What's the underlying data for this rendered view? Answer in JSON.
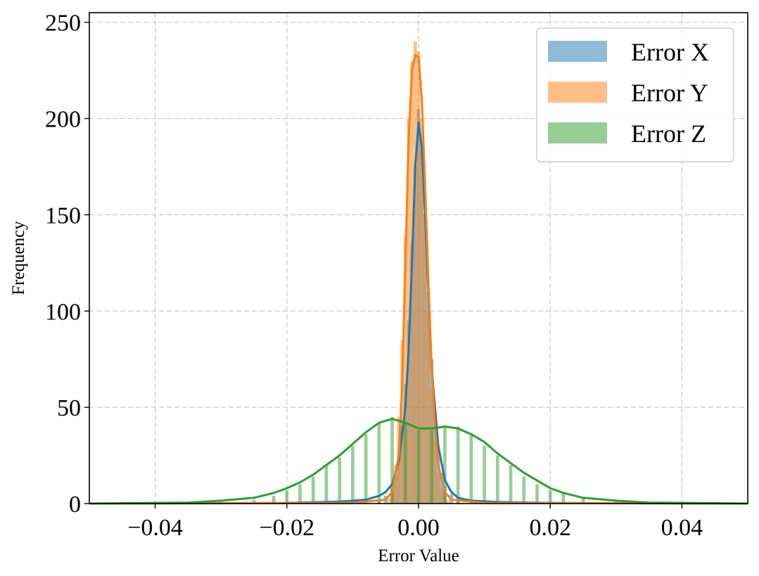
{
  "chart_data": {
    "type": "bar",
    "title": "",
    "xlabel": "Error Value",
    "ylabel": "Frequency",
    "xlim": [
      -0.05,
      0.05
    ],
    "ylim": [
      0,
      255
    ],
    "xticks": [
      -0.04,
      -0.02,
      0.0,
      0.02,
      0.04
    ],
    "xtick_labels": [
      "−0.04",
      "−0.02",
      "0.00",
      "0.02",
      "0.04"
    ],
    "yticks": [
      0,
      50,
      100,
      150,
      200,
      250
    ],
    "ytick_labels": [
      "0",
      "50",
      "100",
      "150",
      "200",
      "250"
    ],
    "grid": true,
    "legend_position": "top-right",
    "bin_width": 0.0005,
    "series": [
      {
        "name": "Error X",
        "color": "#1f77b4",
        "alpha": 0.5,
        "x": [
          -0.006,
          -0.005,
          -0.004,
          -0.0035,
          -0.003,
          -0.0025,
          -0.002,
          -0.0015,
          -0.001,
          -0.0005,
          0.0,
          0.0005,
          0.001,
          0.0015,
          0.002,
          0.0025,
          0.003,
          0.0035,
          0.004,
          0.005,
          0.006
        ],
        "values": [
          2,
          4,
          8,
          15,
          25,
          40,
          62,
          95,
          135,
          175,
          205,
          185,
          150,
          110,
          75,
          48,
          28,
          16,
          9,
          5,
          2
        ]
      },
      {
        "name": "Error Y",
        "color": "#ff7f0e",
        "alpha": 0.5,
        "x": [
          -0.0045,
          -0.004,
          -0.0035,
          -0.003,
          -0.0025,
          -0.002,
          -0.0015,
          -0.001,
          -0.0005,
          0.0,
          0.0005,
          0.001,
          0.0015,
          0.002,
          0.0025,
          0.003,
          0.0035,
          0.004,
          0.0045
        ],
        "values": [
          3,
          8,
          20,
          45,
          85,
          140,
          200,
          230,
          240,
          235,
          200,
          150,
          100,
          60,
          32,
          16,
          8,
          4,
          2
        ]
      },
      {
        "name": "Error Z",
        "color": "#2ca02c",
        "alpha": 0.5,
        "x": [
          -0.03,
          -0.025,
          -0.022,
          -0.02,
          -0.018,
          -0.016,
          -0.014,
          -0.012,
          -0.01,
          -0.008,
          -0.006,
          -0.004,
          -0.002,
          0.0,
          0.002,
          0.004,
          0.006,
          0.008,
          0.01,
          0.012,
          0.014,
          0.016,
          0.018,
          0.02,
          0.022,
          0.025,
          0.03
        ],
        "values": [
          1,
          2,
          4,
          7,
          10,
          14,
          20,
          24,
          30,
          36,
          42,
          45,
          42,
          38,
          38,
          40,
          40,
          36,
          30,
          25,
          20,
          14,
          10,
          7,
          5,
          3,
          2
        ]
      }
    ],
    "kde": [
      {
        "name": "Error X",
        "color": "#1f77b4",
        "x": [
          -0.05,
          -0.02,
          -0.012,
          -0.008,
          -0.006,
          -0.005,
          -0.004,
          -0.003,
          -0.002,
          -0.0015,
          -0.001,
          -0.0005,
          0.0,
          0.0005,
          0.001,
          0.0015,
          0.002,
          0.003,
          0.004,
          0.005,
          0.006,
          0.008,
          0.012,
          0.02,
          0.05
        ],
        "y": [
          0,
          0.3,
          1,
          2,
          4,
          6,
          10,
          22,
          50,
          80,
          125,
          175,
          198,
          185,
          150,
          110,
          70,
          30,
          12,
          6,
          3,
          1.5,
          0.8,
          0.3,
          0
        ]
      },
      {
        "name": "Error Y",
        "color": "#ff7f0e",
        "x": [
          -0.05,
          -0.01,
          -0.005,
          -0.004,
          -0.003,
          -0.0025,
          -0.002,
          -0.0015,
          -0.001,
          -0.0005,
          0.0,
          0.0005,
          0.001,
          0.0015,
          0.002,
          0.0025,
          0.003,
          0.004,
          0.005,
          0.01,
          0.05
        ],
        "y": [
          0,
          0.3,
          2,
          6,
          25,
          60,
          125,
          190,
          225,
          233,
          232,
          210,
          165,
          115,
          70,
          40,
          20,
          6,
          2,
          0.3,
          0
        ]
      },
      {
        "name": "Error Z",
        "color": "#2ca02c",
        "x": [
          -0.05,
          -0.035,
          -0.03,
          -0.025,
          -0.022,
          -0.02,
          -0.018,
          -0.016,
          -0.014,
          -0.012,
          -0.01,
          -0.008,
          -0.006,
          -0.004,
          -0.002,
          0.0,
          0.002,
          0.004,
          0.006,
          0.008,
          0.01,
          0.012,
          0.014,
          0.016,
          0.018,
          0.02,
          0.022,
          0.025,
          0.03,
          0.035,
          0.05
        ],
        "y": [
          0,
          0.5,
          1.5,
          3,
          5.5,
          8,
          11,
          15,
          20,
          25,
          31,
          37,
          42,
          44,
          42,
          39,
          39,
          40,
          39,
          36,
          32,
          26,
          21,
          16,
          12,
          8,
          5.5,
          3,
          1.5,
          0.5,
          0
        ]
      }
    ]
  }
}
